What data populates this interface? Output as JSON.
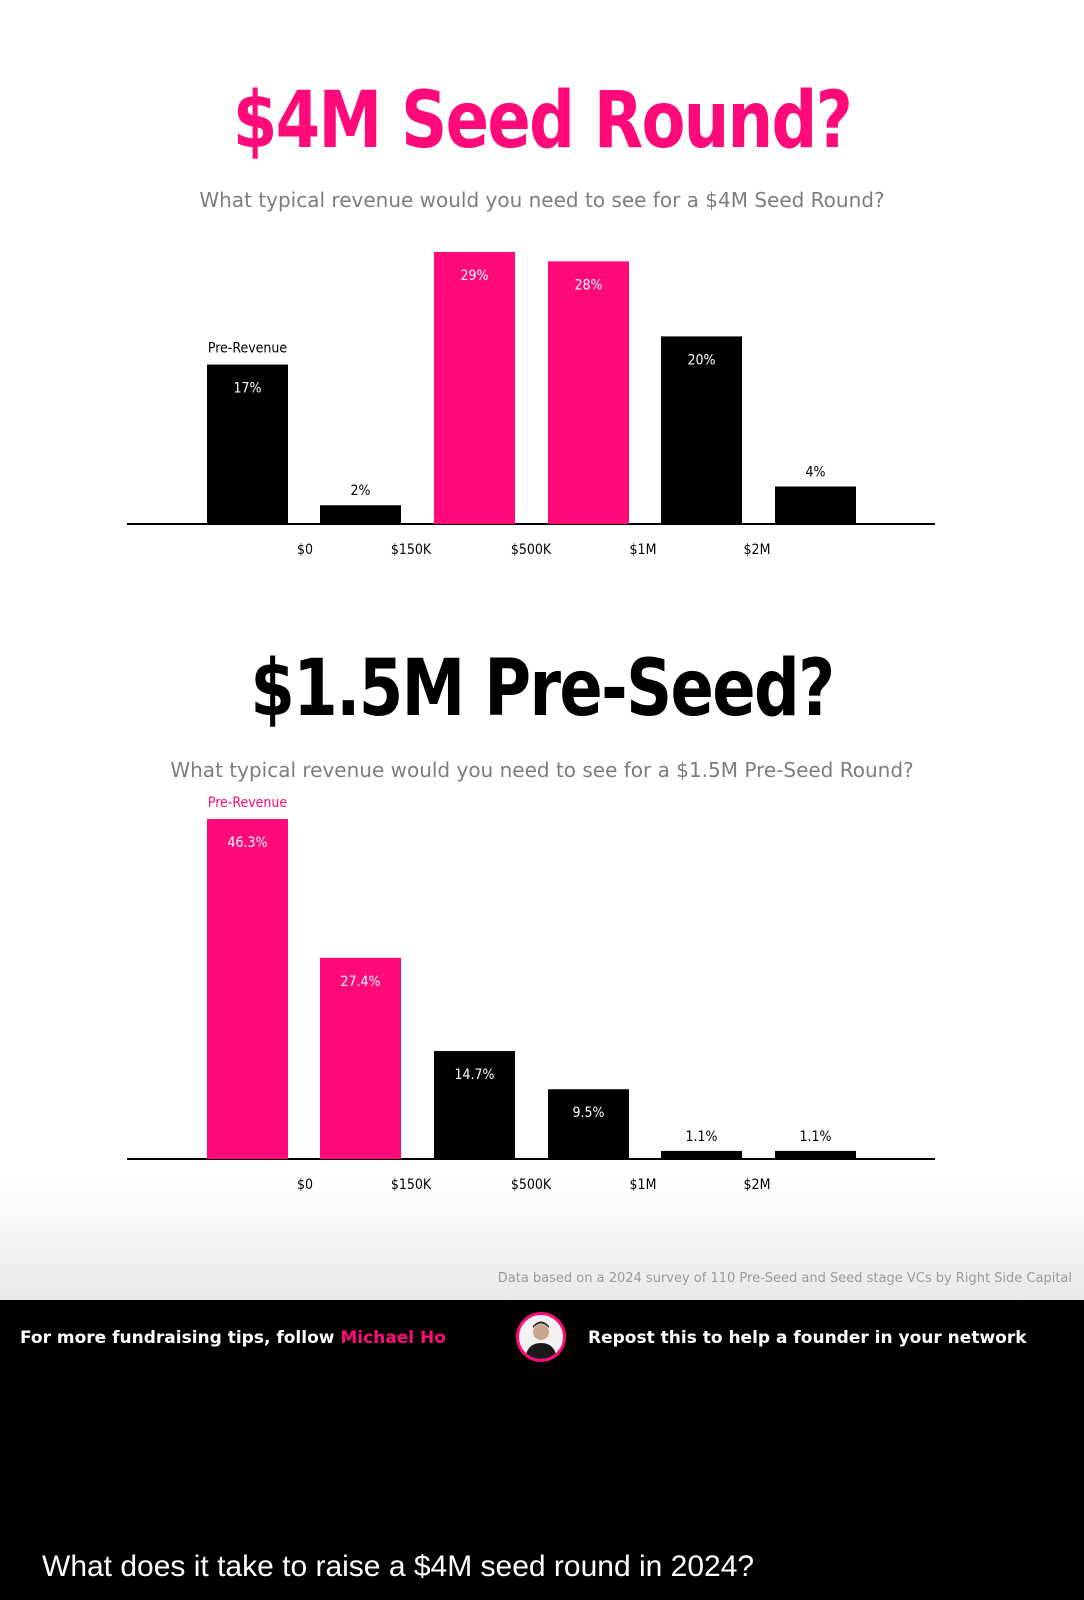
{
  "chart_data": [
    {
      "type": "bar",
      "title": "$4M Seed Round?",
      "subtitle": "What typical revenue would you need to see for a $4M Seed Round?",
      "first_bar_label": "Pre-Revenue",
      "tick_labels": [
        "$0",
        "$150K",
        "$500K",
        "$1M",
        "$2M"
      ],
      "values": [
        17,
        2,
        29,
        28,
        20,
        4
      ],
      "value_labels": [
        "17%",
        "2%",
        "29%",
        "28%",
        "20%",
        "4%"
      ],
      "highlighted": [
        false,
        false,
        true,
        true,
        false,
        false
      ],
      "ylim": [
        0,
        29
      ],
      "grid": false,
      "colors": {
        "highlight": "#ff0a78",
        "default": "#000000"
      }
    },
    {
      "type": "bar",
      "title": "$1.5M Pre-Seed?",
      "subtitle": "What typical revenue would you need to see for a $1.5M Pre-Seed Round?",
      "first_bar_label": "Pre-Revenue",
      "tick_labels": [
        "$0",
        "$150K",
        "$500K",
        "$1M",
        "$2M"
      ],
      "values": [
        46.3,
        27.4,
        14.7,
        9.5,
        1.1,
        1.1
      ],
      "value_labels": [
        "46.3%",
        "27.4%",
        "14.7%",
        "9.5%",
        "1.1%",
        "1.1%"
      ],
      "highlighted": [
        true,
        true,
        false,
        false,
        false,
        false
      ],
      "ylim": [
        0,
        46.3
      ],
      "grid": false,
      "colors": {
        "highlight": "#ff0a78",
        "default": "#000000"
      }
    }
  ],
  "source_note": "Data based on a 2024 survey of 110 Pre-Seed and Seed stage VCs by Right Side Capital",
  "footer": {
    "left_prefix": "For more fundraising tips, follow ",
    "left_name": "Michael Ho",
    "right_text": "Repost this to help a founder in your network",
    "avatar_icon": "person-avatar-icon",
    "name_color": "#ff0a78"
  },
  "caption": "What does it take to raise a $4M seed round in 2024?"
}
